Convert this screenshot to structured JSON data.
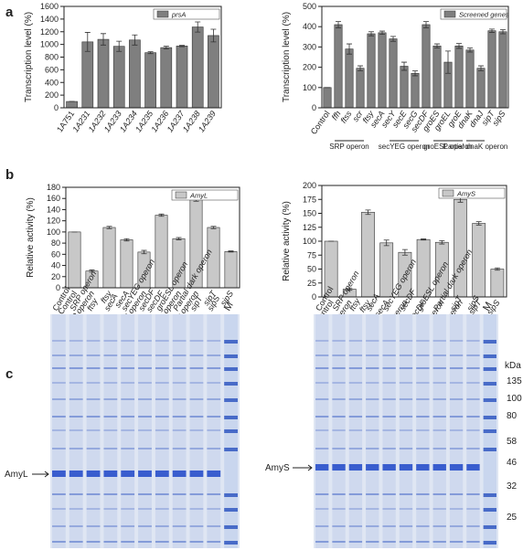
{
  "panels": [
    "a",
    "b",
    "c"
  ],
  "chart_data": [
    {
      "type": "bar",
      "ylabel": "Transcription level (%)",
      "categories": [
        "1A751",
        "1A231",
        "1A232",
        "1A233",
        "1A234",
        "1A235",
        "1A236",
        "1A237",
        "1A238",
        "1A239"
      ],
      "series": [
        {
          "name": "prsA",
          "color": "#7f7f7f",
          "values": [
            100,
            1040,
            1080,
            970,
            1070,
            870,
            950,
            975,
            1275,
            1140
          ],
          "errors": [
            0,
            150,
            90,
            80,
            80,
            15,
            20,
            10,
            80,
            100
          ]
        }
      ],
      "ylim": [
        0,
        1600
      ],
      "yticks": [
        0,
        200,
        400,
        600,
        800,
        1000,
        1200,
        1400,
        1600
      ]
    },
    {
      "type": "bar",
      "ylabel": "Transcription level (%)",
      "categories": [
        "Control",
        "ffh",
        "ftss",
        "scr",
        "ftsy",
        "secA",
        "secY",
        "secE",
        "secG",
        "secDF",
        "groES",
        "groEL",
        "groE",
        "dnaK",
        "dnaJ",
        "sipT",
        "sipS"
      ],
      "series": [
        {
          "name": "Screened genes",
          "color": "#7f7f7f",
          "values": [
            100,
            410,
            290,
            195,
            365,
            370,
            340,
            205,
            170,
            410,
            305,
            225,
            305,
            285,
            195,
            380,
            375
          ],
          "errors": [
            0,
            15,
            25,
            12,
            10,
            8,
            12,
            20,
            12,
            15,
            10,
            55,
            12,
            10,
            12,
            8,
            10
          ]
        }
      ],
      "groups": [
        "SRP operon",
        "secYEG operon",
        "groESL operon",
        "Partial dnaK operon"
      ],
      "ylim": [
        0,
        500
      ],
      "yticks": [
        0,
        100,
        200,
        300,
        400,
        500
      ]
    },
    {
      "type": "bar",
      "ylabel": "Relative activity (%)",
      "categories": [
        "Control",
        "SRP operon",
        "ftsy",
        "secA",
        "secYEG operon",
        "secDF",
        "groESL operon",
        "Partial dank operon",
        "sipT",
        "sipS"
      ],
      "series": [
        {
          "name": "AmyL",
          "color": "#c8c8c8",
          "values": [
            100,
            30,
            108,
            86,
            64,
            130,
            88,
            160,
            108,
            65
          ],
          "errors": [
            0,
            2,
            2,
            2,
            3,
            2,
            2,
            5,
            2,
            1
          ]
        }
      ],
      "ylim": [
        0,
        180
      ],
      "yticks": [
        0,
        20,
        40,
        60,
        80,
        100,
        120,
        140,
        160,
        180
      ]
    },
    {
      "type": "bar",
      "ylabel": "Relative activity (%)",
      "categories": [
        "Control",
        "SRP operon",
        "ftsy",
        "secA",
        "secYEG operon",
        "secDF",
        "groESL operon",
        "Partial dank operon",
        "sipT",
        "sipS"
      ],
      "series": [
        {
          "name": "AmyS",
          "color": "#c8c8c8",
          "values": [
            100,
            14,
            152,
            97,
            80,
            103,
            98,
            175,
            132,
            50
          ],
          "errors": [
            0,
            2,
            4,
            5,
            5,
            1,
            3,
            5,
            3,
            2
          ]
        }
      ],
      "ylim": [
        0,
        200
      ],
      "yticks": [
        0,
        25,
        50,
        75,
        100,
        125,
        150,
        175,
        200
      ]
    }
  ],
  "gels": [
    {
      "protein": "AmyL",
      "lanes": [
        "Control",
        "SRP operon",
        "ftsy",
        "secA",
        "secYEG operon",
        "secDF",
        "groESL operon",
        "Partial dark operon",
        "sipT",
        "sipS",
        "M"
      ]
    },
    {
      "protein": "AmyS",
      "lanes": [
        "Control",
        "SRP operon",
        "ftsy",
        "secA",
        "secYEG operon",
        "secDF",
        "groESL operon",
        "Partial dark operon",
        "sipT",
        "sipS",
        "M"
      ],
      "marker_unit": "kDa",
      "markers": [
        135,
        100,
        80,
        58,
        46,
        32,
        25
      ]
    }
  ]
}
